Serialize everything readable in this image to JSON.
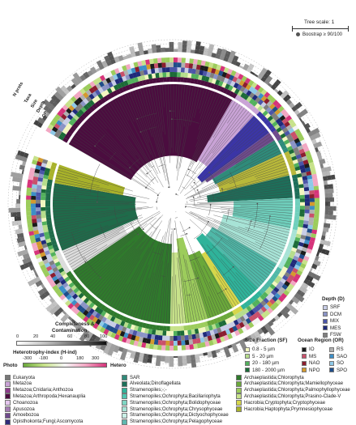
{
  "tree_scale": {
    "label": "Tree scale: 1",
    "bootstrap_label": "Boostrap ≥ 90/100"
  },
  "ring_labels": [
    "N prots",
    "Taxa",
    "Size",
    "Depth",
    "OR"
  ],
  "completeness": {
    "title": "Completeness &",
    "title2": "Contamination",
    "ticks": [
      "0",
      "20",
      "40",
      "60",
      "80",
      "100"
    ]
  },
  "heterotrophy": {
    "title": "Heterotrophy-index (H-ind)",
    "ticks": [
      "-300",
      "-180",
      "0",
      "180",
      "300"
    ],
    "left_label": "Photo",
    "right_label": "Hetero"
  },
  "depth": {
    "title": "Depth (D)",
    "items": [
      {
        "label": "SRF",
        "color": "#c8cde6"
      },
      {
        "label": "DCM",
        "color": "#8a93c6"
      },
      {
        "label": "MIX",
        "color": "#4b55a8"
      },
      {
        "label": "MES",
        "color": "#1f2a7a"
      },
      {
        "label": "FSW",
        "color": "#7f7f7f"
      }
    ]
  },
  "size_fraction": {
    "title": "Size Fraction (SF)",
    "items": [
      {
        "label": "0.8 - 5 µm",
        "color": "#f3f6c0"
      },
      {
        "label": "5 - 20 µm",
        "color": "#b6dd8c"
      },
      {
        "label": "20 - 180 µm",
        "color": "#52b15c"
      },
      {
        "label": "180 - 2000 µm",
        "color": "#1c6b38"
      }
    ]
  },
  "ocean_region": {
    "title": "Ocean Region (OR)",
    "items": [
      {
        "label": "IO",
        "color": "#1b1b1b"
      },
      {
        "label": "RS",
        "color": "#b1b1b1"
      },
      {
        "label": "MS",
        "color": "#c9506b"
      },
      {
        "label": "SAO",
        "color": "#3d8fc7"
      },
      {
        "label": "NAO",
        "color": "#8b1d2f"
      },
      {
        "label": "SO",
        "color": "#8ec9e8"
      },
      {
        "label": "NPO",
        "color": "#d49a2e"
      },
      {
        "label": "SPO",
        "color": "#1f4d8a"
      }
    ]
  },
  "taxonomy": {
    "col1": [
      {
        "label": "Eukaryota",
        "color": "#787878"
      },
      {
        "label": "Metazoa",
        "color": "#c9a3d6"
      },
      {
        "label": "Metazoa;Cnidaria;Anthozoa",
        "color": "#8e3b8c"
      },
      {
        "label": "Metazoa;Arthropoda;Hexanauplia",
        "color": "#4b0d3f"
      },
      {
        "label": "Choanozoa",
        "color": "#e4c6ee"
      },
      {
        "label": "Apusozoa",
        "color": "#a47cb4"
      },
      {
        "label": "Amoebozoa",
        "color": "#6f4a8c"
      },
      {
        "label": "Opisthokonta;Fungi;Ascomycota",
        "color": "#2f2a7a"
      }
    ],
    "col2": [
      {
        "label": "SAR",
        "color": "#2f8b7a"
      },
      {
        "label": "Alveolata;Dinoflagellata",
        "color": "#1d6f5a"
      },
      {
        "label": "Stramenopiles;-;-",
        "color": "#2fb39a"
      },
      {
        "label": "Stramenopiles;Ochrophyta;Bacillariophyta",
        "color": "#4ec5b0"
      },
      {
        "label": "Stramenopiles;Ochrophyta;Bolidophyceae",
        "color": "#7fd6c4"
      },
      {
        "label": "Stramenopiles;Ochrophyta;Chrysophyceae",
        "color": "#a7e3d6"
      },
      {
        "label": "Stramenopiles;Ochrophyta;Dictyochophyceae",
        "color": "#c9efe6"
      },
      {
        "label": "Stramenopiles;Ochrophyta;Pelagophyceae",
        "color": "#5fb8b0"
      }
    ],
    "col3": [
      {
        "label": "Archaeplastida;Chlorophyta",
        "color": "#2f7a2c"
      },
      {
        "label": "Archaeplastida;Chlorophyta;Mamiellophyceae",
        "color": "#6aa83a"
      },
      {
        "label": "Archaeplastida;Chlorophyta;Palmophyllophyceae",
        "color": "#9ccc5c"
      },
      {
        "label": "Archaeplastida;Chlorophyta;Prasino-Clade-V",
        "color": "#c7e28a"
      },
      {
        "label": "Hacrobia;Cryptophyta;Cryptophyceae",
        "color": "#d6d64a"
      },
      {
        "label": "Hacrobia;Haptophyta;Prymnesiophyceae",
        "color": "#a8b22a"
      }
    ]
  },
  "clades": [
    {
      "name": "Metazoa;Arthropoda;Hexanauplia",
      "color": "#4b0d3f",
      "share": 0.245
    },
    {
      "name": "Metazoa",
      "color": "#c9a3d6",
      "share": 0.035
    },
    {
      "name": "Opisthokonta;Fungi;Ascomycota",
      "color": "#3b35a6",
      "share": 0.03
    },
    {
      "name": "Amoebozoa",
      "color": "#6f4a8c",
      "share": 0.012
    },
    {
      "name": "SAR",
      "color": "#2f8b7a",
      "share": 0.02
    },
    {
      "name": "Hacrobia;Haptophyta;Prymnesiophyceae",
      "color": "#b8b83a",
      "share": 0.03
    },
    {
      "name": "Alveolata;Dinoflagellata",
      "color": "#1d6f5a",
      "share": 0.03
    },
    {
      "name": "Stramenopiles;Ochrophyta;Bacillariophyta",
      "color": "#6fcfbc",
      "share": 0.04
    },
    {
      "name": "Stramenopiles;Ochrophyta;Chrysophyceae",
      "color": "#a7e3d6",
      "share": 0.05
    },
    {
      "name": "Stramenopiles;Ochrophyta;Pelagophyceae",
      "color": "#4fb8a8",
      "share": 0.04
    },
    {
      "name": "Stramenopiles;-;-",
      "color": "#2fb39a",
      "share": 0.03
    },
    {
      "name": "Hacrobia;Cryptophyta;Cryptophyceae",
      "color": "#d6d64a",
      "share": 0.012
    },
    {
      "name": "Archaeplastida;Chlorophyta;Mamiellophyceae",
      "color": "#6aa83a",
      "share": 0.035
    },
    {
      "name": "Archaeplastida;Chlorophyta;Palmophyllophyceae",
      "color": "#9ccc5c",
      "share": 0.03
    },
    {
      "name": "Archaeplastida;Chlorophyta;Prasino-Clade-V",
      "color": "#c7e28a",
      "share": 0.02
    },
    {
      "name": "Archaeplastida;Chlorophyta",
      "color": "#2f7a2c",
      "share": 0.15
    },
    {
      "name": "Eukaryota",
      "color": "#dcdcdc",
      "share": 0.03
    },
    {
      "name": "Archaeplastida;Chlorophyta",
      "color": "#1f6b4a",
      "share": 0.09
    },
    {
      "name": "Hacrobia;Haptophyta;Prymnesiophyceae",
      "color": "#a8b22a",
      "share": 0.025
    }
  ]
}
